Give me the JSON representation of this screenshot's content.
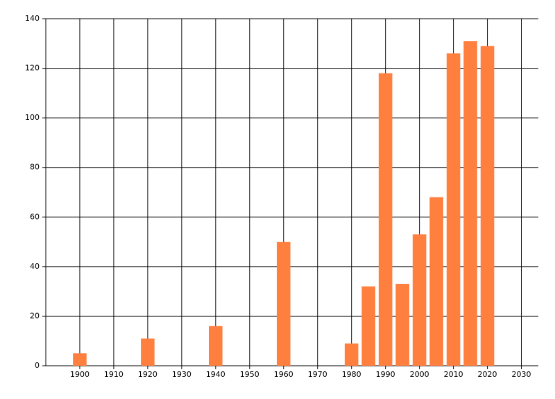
{
  "chart_data": {
    "type": "bar",
    "x": [
      1900,
      1920,
      1940,
      1960,
      1980,
      1985,
      1990,
      1995,
      2000,
      2005,
      2010,
      2015,
      2020
    ],
    "values": [
      5,
      11,
      16,
      50,
      9,
      32,
      118,
      33,
      53,
      68,
      126,
      131,
      129
    ],
    "color": "#ff7f3f",
    "xlim": [
      1890,
      2035
    ],
    "xticks": [
      1900,
      1910,
      1920,
      1930,
      1940,
      1950,
      1960,
      1970,
      1980,
      1990,
      2000,
      2010,
      2020,
      2030
    ],
    "ylim": [
      0,
      140
    ],
    "yticks": [
      0,
      20,
      40,
      60,
      80,
      100,
      120,
      140
    ],
    "grid": true
  }
}
